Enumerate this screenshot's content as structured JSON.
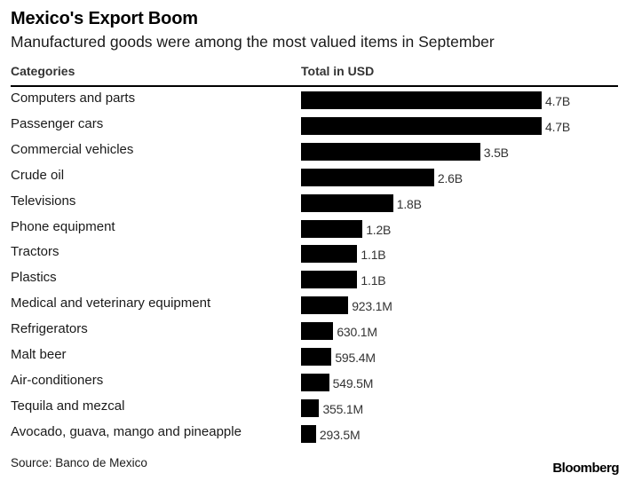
{
  "chart_data": {
    "type": "bar",
    "orientation": "horizontal",
    "title": "Mexico's Export Boom",
    "subtitle": "Manufactured goods were among the most valued items in September",
    "category_header": "Categories",
    "value_header": "Total in USD",
    "unit": "USD",
    "categories": [
      "Computers and parts",
      "Passenger cars",
      "Commercial vehicles",
      "Crude oil",
      "Televisions",
      "Phone equipment",
      "Tractors",
      "Plastics",
      "Medical and veterinary equipment",
      "Refrigerators",
      "Malt beer",
      "Air-conditioners",
      "Tequila and mezcal",
      "Avocado, guava, mango and pineapple"
    ],
    "values": [
      4700000000,
      4700000000,
      3500000000,
      2600000000,
      1800000000,
      1200000000,
      1100000000,
      1100000000,
      923100000,
      630100000,
      595400000,
      549500000,
      355100000,
      293500000
    ],
    "value_labels": [
      "4.7B",
      "4.7B",
      "3.5B",
      "2.6B",
      "1.8B",
      "1.2B",
      "1.1B",
      "1.1B",
      "923.1M",
      "630.1M",
      "595.4M",
      "549.5M",
      "355.1M",
      "293.5M"
    ],
    "bar_color": "#000000",
    "grid": false,
    "legend": "none",
    "source": "Source: Banco de Mexico",
    "brand": "Bloomberg"
  }
}
